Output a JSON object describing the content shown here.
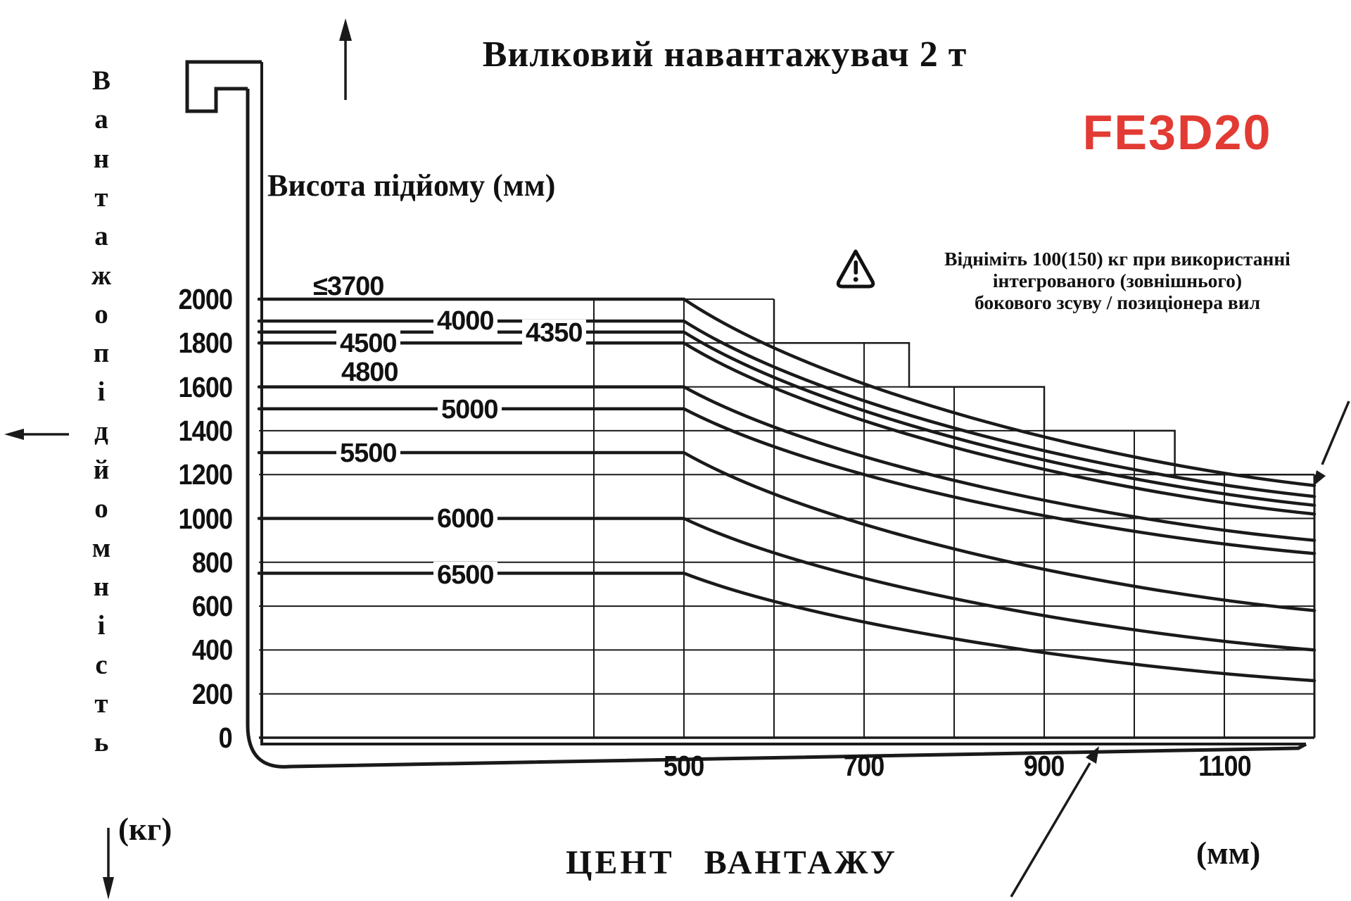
{
  "title": "Вилковий навантажувач 2 т",
  "model": "FE3D20",
  "colors": {
    "accent_red": "#e23b33",
    "line_black": "#1a1a1a",
    "background": "#ffffff"
  },
  "lift_height_axis_title": "Висота підйому (мм)",
  "y_axis_word_vertical": "Вантажопідйомність",
  "capacity_unit": "(кг)",
  "load_center_unit": "(мм)",
  "x_axis_title": "ЦЕНТ ВАНТАЖУ",
  "warning": {
    "icon": "warning-triangle-exclamation",
    "lines": [
      "Відніміть 100(150) кг при використанні",
      "інтегрованого (зовнішнього)",
      "бокового зсуву / позиціонера вил"
    ]
  },
  "chart_data": {
    "type": "line",
    "title": "Вилковий навантажувач 2 т",
    "xlabel": "ЦЕНТ ВАНТАЖУ (мм)",
    "ylabel": "Вантажопідйомність (кг)",
    "xlim": [
      400,
      1200
    ],
    "ylim": [
      0,
      2000
    ],
    "x_ticks_labeled": [
      500,
      700,
      900,
      1100
    ],
    "x_grid_step_mm": 100,
    "y_ticks": [
      0,
      200,
      400,
      600,
      800,
      1000,
      1200,
      1400,
      1600,
      1800,
      2000
    ],
    "grid": true,
    "legend_position": "labels-on-lines",
    "flat_until_load_center_mm": 500,
    "series": [
      {
        "name": "≤3700",
        "lift_height_mm": 3700,
        "points": [
          [
            400,
            2000
          ],
          [
            500,
            2000
          ],
          [
            1200,
            1150
          ]
        ]
      },
      {
        "name": "4000",
        "lift_height_mm": 4000,
        "points": [
          [
            400,
            1900
          ],
          [
            500,
            1900
          ],
          [
            1200,
            1100
          ]
        ]
      },
      {
        "name": "4350",
        "lift_height_mm": 4350,
        "points": [
          [
            400,
            1850
          ],
          [
            500,
            1850
          ],
          [
            1200,
            1060
          ]
        ]
      },
      {
        "name": "4500",
        "lift_height_mm": 4500,
        "points": [
          [
            400,
            1800
          ],
          [
            500,
            1800
          ],
          [
            1200,
            1020
          ]
        ]
      },
      {
        "name": "4800",
        "lift_height_mm": 4800,
        "points": [
          [
            400,
            1600
          ],
          [
            500,
            1600
          ],
          [
            1200,
            900
          ]
        ]
      },
      {
        "name": "5000",
        "lift_height_mm": 5000,
        "points": [
          [
            400,
            1500
          ],
          [
            500,
            1500
          ],
          [
            1200,
            840
          ]
        ]
      },
      {
        "name": "5500",
        "lift_height_mm": 5500,
        "points": [
          [
            400,
            1300
          ],
          [
            500,
            1300
          ],
          [
            1200,
            580
          ]
        ]
      },
      {
        "name": "6000",
        "lift_height_mm": 6000,
        "points": [
          [
            400,
            1000
          ],
          [
            500,
            1000
          ],
          [
            1200,
            400
          ]
        ]
      },
      {
        "name": "6500",
        "lift_height_mm": 6500,
        "points": [
          [
            400,
            750
          ],
          [
            500,
            750
          ],
          [
            1200,
            260
          ]
        ]
      }
    ]
  }
}
